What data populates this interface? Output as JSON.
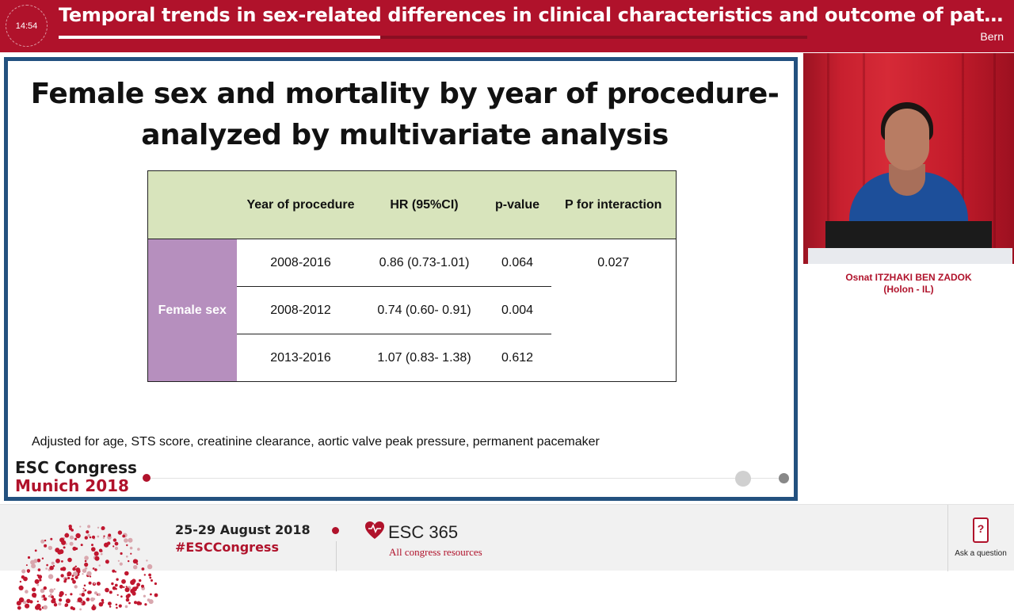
{
  "header": {
    "timer": "14:54",
    "title": "Temporal trends in sex-related differences in clinical characteristics and outcome of patients undergoing TAVI",
    "city": "Bern",
    "progress_fraction": 0.43
  },
  "slide": {
    "title_line1": "Female sex and mortality by year of procedure-",
    "title_line2": "analyzed by multivariate analysis",
    "table": {
      "headers": [
        "",
        "Year of procedure",
        "HR (95%CI)",
        "p-value",
        "P for interaction"
      ],
      "row_label": "Female sex",
      "rows": [
        {
          "year": "2008-2016",
          "hr": "0.86 (0.73-1.01)",
          "p": "0.064",
          "p_interaction": "0.027"
        },
        {
          "year": "2008-2012",
          "hr": "0.74 (0.60- 0.91)",
          "p": "0.004",
          "p_interaction": ""
        },
        {
          "year": "2013-2016",
          "hr": "1.07 (0.83- 1.38)",
          "p": "0.612",
          "p_interaction": ""
        }
      ]
    },
    "footnote": "Adjusted for age, STS score, creatinine clearance, aortic valve peak pressure, permanent pacemaker",
    "brand_line1": "ESC Congress",
    "brand_line2": "Munich 2018"
  },
  "speaker": {
    "name": "Osnat ITZHAKI BEN ZADOK",
    "affiliation": "(Holon - IL)"
  },
  "footer": {
    "dates": "25-29 August 2018",
    "hashtag": "#ESCCongress",
    "esc365_label": "ESC 365",
    "esc365_sub": "All congress resources",
    "ask_label": "Ask a question",
    "ask_icon_glyph": "?"
  },
  "colors": {
    "brand_red": "#b0122b",
    "slide_border": "#23517f",
    "table_header_bg": "#d8e4bc",
    "row_label_bg": "#b68fbe"
  }
}
